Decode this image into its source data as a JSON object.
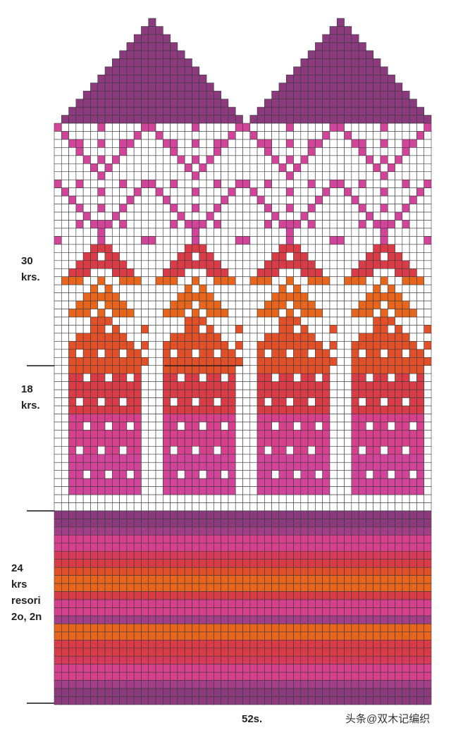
{
  "row_labels": [
    [
      "30",
      "krs."
    ],
    [
      "18",
      "krs."
    ],
    [
      "24",
      "krs",
      "resori",
      "2o, 2n"
    ]
  ],
  "stitch_label": "52s.",
  "watermark": "头条@双木记编织"
}
